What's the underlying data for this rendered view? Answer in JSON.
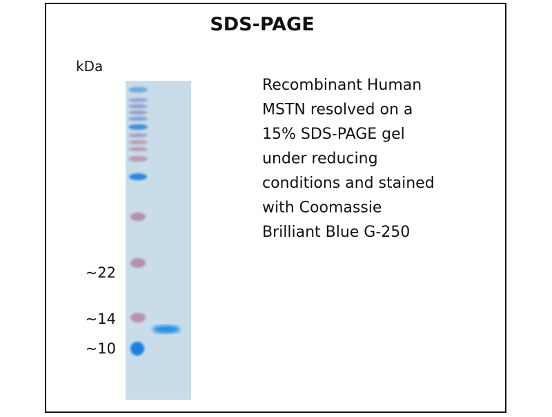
{
  "title": "SDS-PAGE",
  "unit_label": "kDa",
  "markers": [
    "~22",
    "~14",
    "~10"
  ],
  "description": [
    "Recombinant Human",
    "MSTN resolved on a",
    "15% SDS-PAGE gel",
    "under reducing",
    "conditions and stained",
    "with Coomassie",
    "Brilliant Blue G-250"
  ]
}
